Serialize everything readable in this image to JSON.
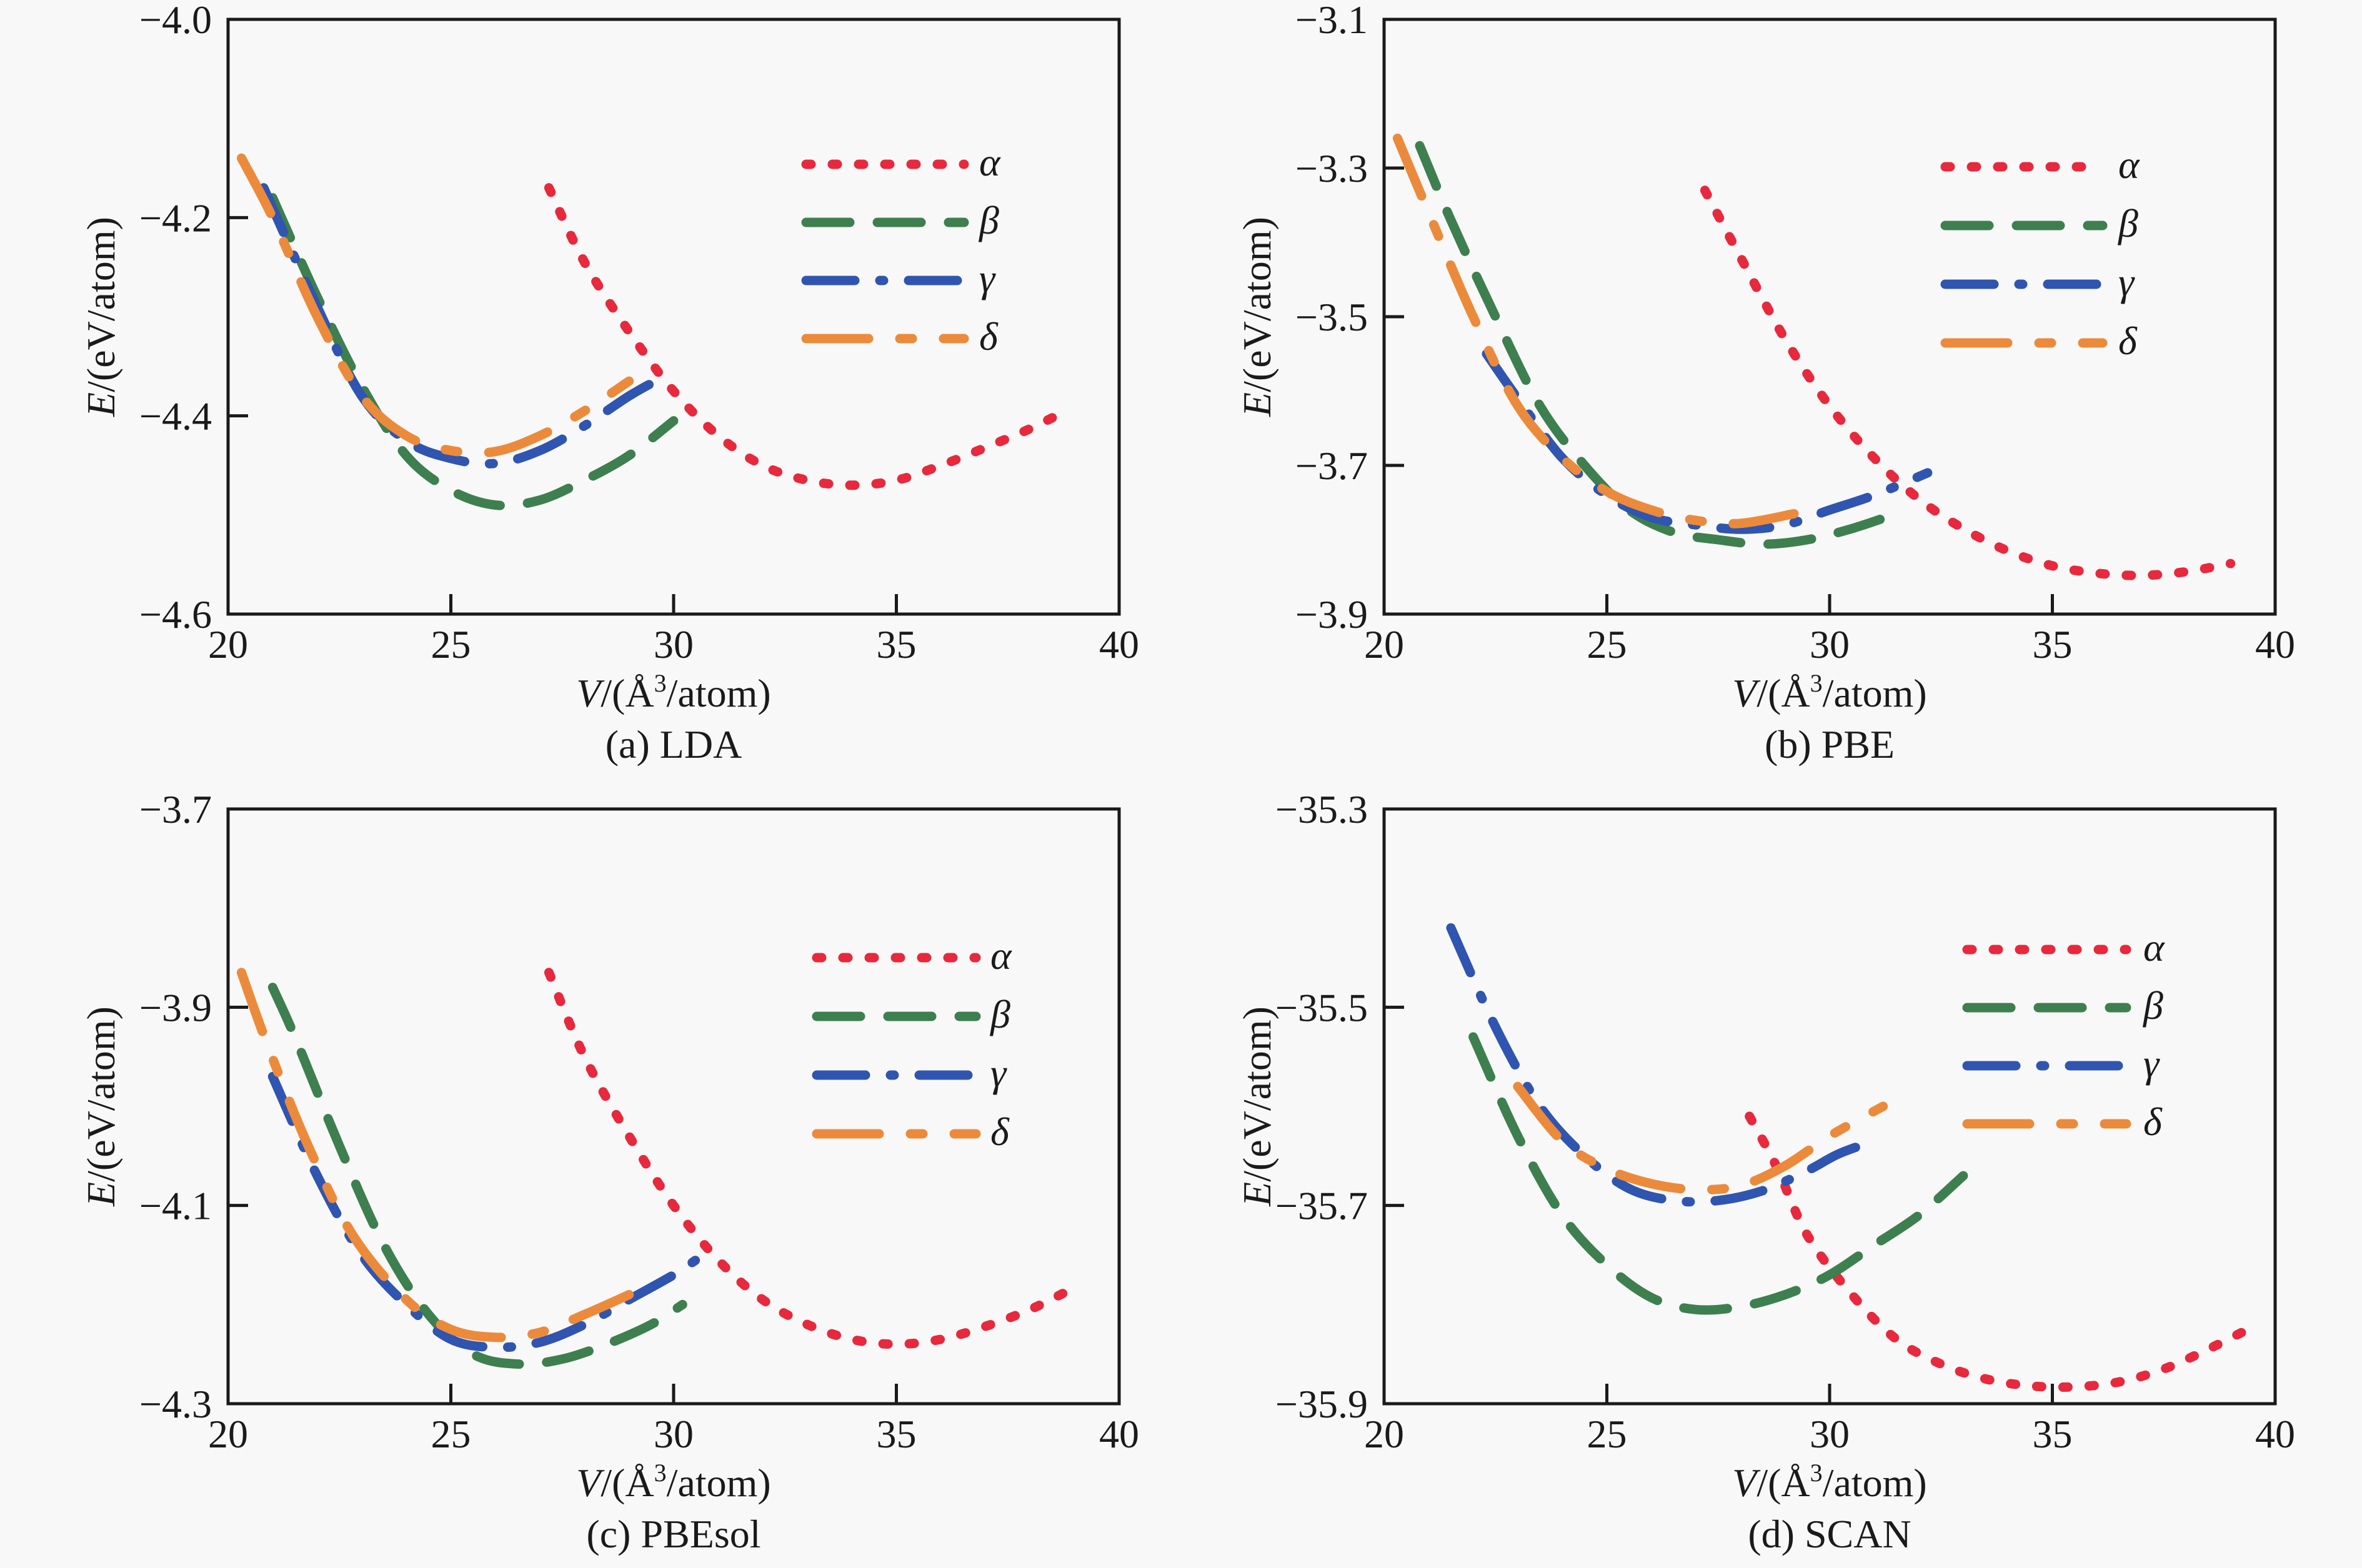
{
  "figure": {
    "colors": {
      "alpha": "#e8283c",
      "beta": "#3e7f4f",
      "gamma": "#2f55b0",
      "delta": "#ec8a3c"
    },
    "series_styles": {
      "alpha": "dotted",
      "beta": "dashed",
      "gamma": "dash-dot",
      "delta": "long-dash-short-dash"
    }
  },
  "chart_data": [
    {
      "type": "line",
      "id": "a",
      "caption": "(a) LDA",
      "xlabel_var": "V",
      "xlabel_unit": "/(Å",
      "xlabel_sup": "3",
      "xlabel_tail": "/atom)",
      "ylabel_var": "E",
      "ylabel_unit": "/(eV/atom)",
      "xlim": [
        20,
        40
      ],
      "ylim": [
        -4.6,
        -4.0
      ],
      "xticks": [
        20,
        25,
        30,
        35,
        40
      ],
      "xtick_labels": [
        "20",
        "25",
        "30",
        "35",
        "40"
      ],
      "yticks": [
        -4.6,
        -4.4,
        -4.2,
        -4.0
      ],
      "ytick_labels": [
        "−4.6",
        "−4.4",
        "−4.2",
        "−4.0"
      ],
      "legend_position": "upper-right",
      "series": [
        {
          "key": "alpha",
          "name": "α",
          "x": [
            27.2,
            28,
            29,
            30,
            31,
            32,
            33,
            34,
            35,
            36,
            37,
            38,
            38.8
          ],
          "y": [
            -4.17,
            -4.245,
            -4.315,
            -4.375,
            -4.42,
            -4.45,
            -4.465,
            -4.47,
            -4.465,
            -4.45,
            -4.432,
            -4.413,
            -4.395
          ]
        },
        {
          "key": "beta",
          "name": "β",
          "x": [
            21,
            22,
            23,
            24,
            25,
            26,
            27,
            28,
            29,
            30
          ],
          "y": [
            -4.18,
            -4.28,
            -4.37,
            -4.44,
            -4.475,
            -4.49,
            -4.485,
            -4.465,
            -4.44,
            -4.405
          ]
        },
        {
          "key": "gamma",
          "name": "γ",
          "x": [
            20.8,
            22,
            23,
            24,
            25,
            26,
            27,
            28,
            29,
            29.8
          ],
          "y": [
            -4.17,
            -4.29,
            -4.38,
            -4.425,
            -4.443,
            -4.448,
            -4.435,
            -4.41,
            -4.38,
            -4.36
          ]
        },
        {
          "key": "delta",
          "name": "δ",
          "x": [
            20.3,
            21,
            22,
            23,
            24,
            25,
            26,
            27,
            28,
            29
          ],
          "y": [
            -4.14,
            -4.2,
            -4.3,
            -4.38,
            -4.42,
            -4.435,
            -4.436,
            -4.42,
            -4.395,
            -4.365
          ]
        }
      ]
    },
    {
      "type": "line",
      "id": "b",
      "caption": "(b) PBE",
      "xlabel_var": "V",
      "xlabel_unit": "/(Å",
      "xlabel_sup": "3",
      "xlabel_tail": "/atom)",
      "ylabel_var": "E",
      "ylabel_unit": "/(eV/atom)",
      "xlim": [
        20,
        40
      ],
      "ylim": [
        -3.9,
        -3.1
      ],
      "xticks": [
        20,
        25,
        30,
        35,
        40
      ],
      "xtick_labels": [
        "20",
        "25",
        "30",
        "35",
        "40"
      ],
      "yticks": [
        -3.9,
        -3.7,
        -3.5,
        -3.3,
        -3.1
      ],
      "ytick_labels": [
        "−3.9",
        "−3.7",
        "−3.5",
        "−3.3",
        "−3.1"
      ],
      "legend_position": "upper-right",
      "series": [
        {
          "key": "alpha",
          "name": "α",
          "x": [
            27.2,
            28,
            29,
            30,
            31,
            32,
            33,
            34,
            35,
            36,
            37,
            38,
            39
          ],
          "y": [
            -3.33,
            -3.42,
            -3.53,
            -3.62,
            -3.69,
            -3.745,
            -3.785,
            -3.815,
            -3.835,
            -3.845,
            -3.848,
            -3.843,
            -3.832
          ]
        },
        {
          "key": "beta",
          "name": "β",
          "x": [
            20.8,
            21.5,
            22.5,
            23.5,
            24.5,
            25.5,
            26.5,
            27.5,
            28.5,
            29.5,
            30.5,
            31.5
          ],
          "y": [
            -3.27,
            -3.37,
            -3.5,
            -3.62,
            -3.7,
            -3.76,
            -3.79,
            -3.8,
            -3.806,
            -3.8,
            -3.785,
            -3.765
          ]
        },
        {
          "key": "gamma",
          "name": "γ",
          "x": [
            22.3,
            23,
            24,
            25,
            26,
            27,
            28,
            29,
            30,
            31,
            32.2
          ],
          "y": [
            -3.55,
            -3.61,
            -3.69,
            -3.74,
            -3.77,
            -3.78,
            -3.786,
            -3.78,
            -3.76,
            -3.74,
            -3.71
          ]
        },
        {
          "key": "delta",
          "name": "δ",
          "x": [
            20.3,
            21,
            22,
            23,
            24,
            25,
            26,
            27,
            28,
            29.2
          ],
          "y": [
            -3.26,
            -3.36,
            -3.5,
            -3.62,
            -3.69,
            -3.735,
            -3.76,
            -3.774,
            -3.778,
            -3.765
          ]
        }
      ]
    },
    {
      "type": "line",
      "id": "c",
      "caption": "(c) PBEsol",
      "xlabel_var": "V",
      "xlabel_unit": "/(Å",
      "xlabel_sup": "3",
      "xlabel_tail": "/atom)",
      "ylabel_var": "E",
      "ylabel_unit": "/(eV/atom)",
      "xlim": [
        20,
        40
      ],
      "ylim": [
        -4.3,
        -3.7
      ],
      "xticks": [
        20,
        25,
        30,
        35,
        40
      ],
      "xtick_labels": [
        "20",
        "25",
        "30",
        "35",
        "40"
      ],
      "yticks": [
        -4.3,
        -4.1,
        -3.9,
        -3.7
      ],
      "ytick_labels": [
        "−4.3",
        "−4.1",
        "−3.9",
        "−3.7"
      ],
      "legend_position": "upper-right",
      "series": [
        {
          "key": "alpha",
          "name": "α",
          "x": [
            27.2,
            28,
            29,
            30,
            31,
            32,
            33,
            34,
            35,
            36,
            37,
            38,
            38.9
          ],
          "y": [
            -3.865,
            -3.95,
            -4.03,
            -4.1,
            -4.155,
            -4.195,
            -4.22,
            -4.235,
            -4.24,
            -4.235,
            -4.222,
            -4.205,
            -4.185
          ]
        },
        {
          "key": "beta",
          "name": "β",
          "x": [
            21,
            21.5,
            22.5,
            23.5,
            24.5,
            25.5,
            26.5,
            27.5,
            28.5,
            29.5,
            30.2
          ],
          "y": [
            -3.88,
            -3.93,
            -4.04,
            -4.14,
            -4.21,
            -4.25,
            -4.26,
            -4.255,
            -4.24,
            -4.22,
            -4.2
          ]
        },
        {
          "key": "gamma",
          "name": "γ",
          "x": [
            21,
            22,
            23,
            24,
            25,
            26,
            27,
            28,
            29,
            30,
            30.5
          ],
          "y": [
            -3.97,
            -4.07,
            -4.15,
            -4.2,
            -4.235,
            -4.243,
            -4.238,
            -4.22,
            -4.195,
            -4.17,
            -4.155
          ]
        },
        {
          "key": "delta",
          "name": "δ",
          "x": [
            20.3,
            20.9,
            21.8,
            22.8,
            24,
            25,
            26,
            27,
            28,
            29
          ],
          "y": [
            -3.865,
            -3.94,
            -4.04,
            -4.13,
            -4.195,
            -4.225,
            -4.233,
            -4.228,
            -4.21,
            -4.19
          ]
        }
      ]
    },
    {
      "type": "line",
      "id": "d",
      "caption": "(d) SCAN",
      "xlabel_var": "V",
      "xlabel_unit": "/(Å",
      "xlabel_sup": "3",
      "xlabel_tail": "/atom)",
      "ylabel_var": "E",
      "ylabel_unit": "/(eV/atom)",
      "xlim": [
        20,
        40
      ],
      "ylim": [
        -35.9,
        -35.3
      ],
      "xticks": [
        20,
        25,
        30,
        35,
        40
      ],
      "xtick_labels": [
        "20",
        "25",
        "30",
        "35",
        "40"
      ],
      "yticks": [
        -35.9,
        -35.7,
        -35.5,
        -35.3
      ],
      "ytick_labels": [
        "−35.9",
        "−35.7",
        "−35.5",
        "−35.3"
      ],
      "legend_position": "upper-right",
      "series": [
        {
          "key": "alpha",
          "name": "α",
          "x": [
            28.2,
            28.8,
            29.5,
            30.5,
            31.5,
            32.5,
            33.5,
            34.5,
            35.5,
            36.5,
            37.5,
            38.5,
            39.6
          ],
          "y": [
            -35.61,
            -35.66,
            -35.73,
            -35.79,
            -35.835,
            -35.86,
            -35.875,
            -35.882,
            -35.883,
            -35.878,
            -35.865,
            -35.845,
            -35.82
          ]
        },
        {
          "key": "beta",
          "name": "β",
          "x": [
            22,
            23,
            24,
            25,
            26,
            27,
            28,
            29,
            30,
            31,
            32,
            33
          ],
          "y": [
            -35.53,
            -35.63,
            -35.71,
            -35.76,
            -35.793,
            -35.805,
            -35.802,
            -35.79,
            -35.77,
            -35.74,
            -35.71,
            -35.67
          ]
        },
        {
          "key": "gamma",
          "name": "γ",
          "x": [
            21.5,
            22.5,
            23.5,
            24.5,
            25.5,
            26.5,
            27.5,
            28.5,
            29.5,
            30.2,
            31
          ],
          "y": [
            -35.42,
            -35.52,
            -35.6,
            -35.65,
            -35.683,
            -35.695,
            -35.695,
            -35.685,
            -35.665,
            -35.648,
            -35.635
          ]
        },
        {
          "key": "delta",
          "name": "δ",
          "x": [
            23,
            24,
            25,
            26,
            27,
            28,
            29,
            30,
            31.2
          ],
          "y": [
            -35.58,
            -35.635,
            -35.663,
            -35.678,
            -35.684,
            -35.68,
            -35.66,
            -35.63,
            -35.6
          ]
        }
      ]
    }
  ]
}
